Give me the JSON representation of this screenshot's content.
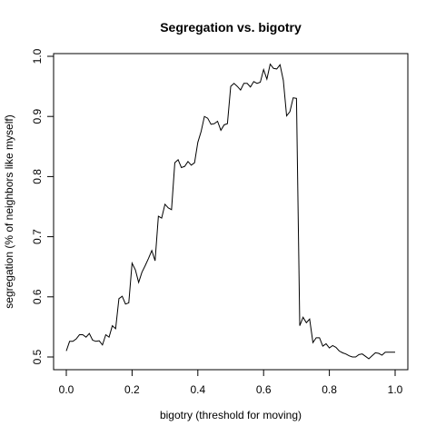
{
  "chart_data": {
    "type": "line",
    "title": "Segregation vs. bigotry",
    "xlabel": "bigotry (threshold for moving)",
    "ylabel": "segregation (% of neighbors like myself)",
    "xlim": [
      0.0,
      1.0
    ],
    "ylim": [
      0.5,
      1.0
    ],
    "grid": false,
    "legend": "none",
    "line_color": "#000000",
    "x_ticks": [
      0.0,
      0.2,
      0.4,
      0.6,
      0.8,
      1.0
    ],
    "x_tick_labels": [
      "0.0",
      "0.2",
      "0.4",
      "0.6",
      "0.8",
      "1.0"
    ],
    "y_ticks": [
      0.5,
      0.6,
      0.7,
      0.8,
      0.9,
      1.0
    ],
    "y_tick_labels": [
      "0.5",
      "0.6",
      "0.7",
      "0.8",
      "0.9",
      "1.0"
    ],
    "series": [
      {
        "x": [
          0.0,
          0.01,
          0.02,
          0.03,
          0.04,
          0.05,
          0.06,
          0.07,
          0.08,
          0.09,
          0.1,
          0.11,
          0.12,
          0.13,
          0.14,
          0.15,
          0.16,
          0.17,
          0.18,
          0.19,
          0.2,
          0.21,
          0.22,
          0.23,
          0.24,
          0.25,
          0.26,
          0.27,
          0.28,
          0.29,
          0.3,
          0.31,
          0.32,
          0.33,
          0.34,
          0.35,
          0.36,
          0.37,
          0.38,
          0.39,
          0.4,
          0.41,
          0.42,
          0.43,
          0.44,
          0.45,
          0.46,
          0.47,
          0.48,
          0.49,
          0.5,
          0.51,
          0.52,
          0.53,
          0.54,
          0.55,
          0.56,
          0.57,
          0.58,
          0.59,
          0.6,
          0.61,
          0.62,
          0.63,
          0.64,
          0.65,
          0.66,
          0.67,
          0.68,
          0.69,
          0.7,
          0.71,
          0.72,
          0.73,
          0.74,
          0.75,
          0.76,
          0.77,
          0.78,
          0.79,
          0.8,
          0.81,
          0.82,
          0.83,
          0.84,
          0.85,
          0.86,
          0.87,
          0.88,
          0.89,
          0.9,
          0.91,
          0.92,
          0.93,
          0.94,
          0.95,
          0.96,
          0.97,
          0.98,
          0.99,
          1.0
        ],
        "y": [
          0.51,
          0.526,
          0.526,
          0.53,
          0.537,
          0.537,
          0.533,
          0.539,
          0.528,
          0.526,
          0.527,
          0.52,
          0.537,
          0.533,
          0.552,
          0.547,
          0.597,
          0.601,
          0.588,
          0.59,
          0.656,
          0.645,
          0.624,
          0.641,
          0.652,
          0.664,
          0.677,
          0.66,
          0.734,
          0.731,
          0.754,
          0.748,
          0.745,
          0.823,
          0.828,
          0.815,
          0.817,
          0.825,
          0.819,
          0.823,
          0.857,
          0.875,
          0.9,
          0.897,
          0.887,
          0.888,
          0.892,
          0.877,
          0.886,
          0.888,
          0.95,
          0.955,
          0.95,
          0.944,
          0.955,
          0.955,
          0.949,
          0.958,
          0.955,
          0.957,
          0.978,
          0.962,
          0.987,
          0.98,
          0.979,
          0.986,
          0.96,
          0.901,
          0.908,
          0.931,
          0.93,
          0.552,
          0.566,
          0.557,
          0.563,
          0.524,
          0.532,
          0.532,
          0.518,
          0.522,
          0.515,
          0.519,
          0.516,
          0.51,
          0.507,
          0.505,
          0.502,
          0.5,
          0.5,
          0.504,
          0.505,
          0.501,
          0.497,
          0.502,
          0.507,
          0.506,
          0.503,
          0.508,
          0.508,
          0.508,
          0.508
        ]
      }
    ]
  }
}
